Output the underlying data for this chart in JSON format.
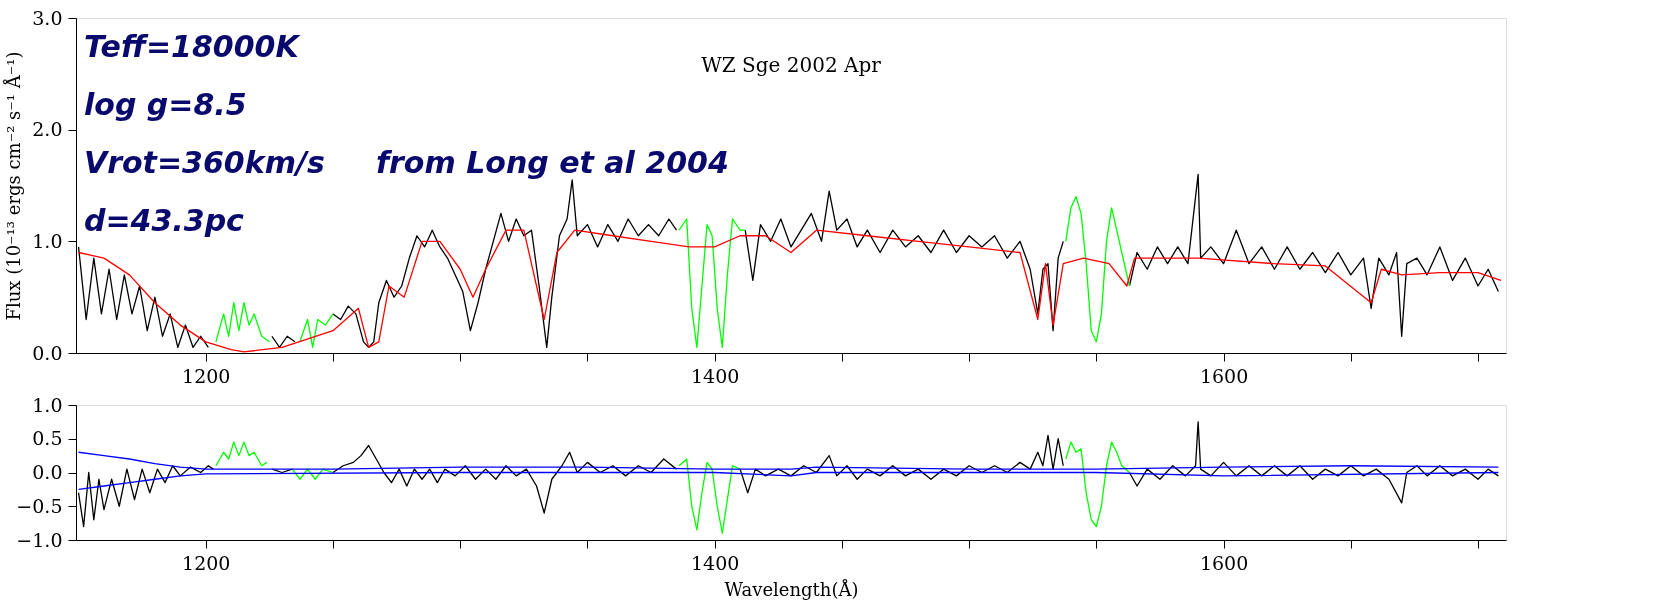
{
  "chart_data": [
    {
      "type": "line",
      "title": "WZ Sge 2002 Apr",
      "ylabel": "Flux (10⁻¹³ ergs cm⁻² s⁻¹ Å⁻¹)",
      "annotations": [
        "Teff=18000K",
        "log g=8.5",
        "Vrot=360km/s",
        "d=43.3pc",
        "from Long et al 2004"
      ],
      "xlim": [
        1149,
        1711
      ],
      "ylim": [
        0,
        3
      ],
      "xticks": [
        1200,
        {
          "value": 1250,
          "label": null
        },
        {
          "value": 1300,
          "label": null
        },
        {
          "value": 1350,
          "label": null
        },
        1400,
        {
          "value": 1450,
          "label": null
        },
        {
          "value": 1500,
          "label": null
        },
        {
          "value": 1550,
          "label": null
        },
        1600,
        {
          "value": 1650,
          "label": null
        },
        {
          "value": 1700,
          "label": null
        }
      ],
      "yticks": [
        {
          "value": 0,
          "label": "0.0"
        },
        {
          "value": 1,
          "label": "1.0"
        },
        {
          "value": 2,
          "label": "2.0"
        },
        {
          "value": 3,
          "label": "3.0"
        }
      ],
      "grid": false,
      "line_style": "solid",
      "marker": "none",
      "series": [
        {
          "color": "#000000",
          "x": [
            1150,
            1153,
            1156,
            1159,
            1162,
            1165,
            1168,
            1171,
            1174,
            1177,
            1180,
            1183,
            1186,
            1189,
            1192,
            1195,
            1198,
            1201,
            1204,
            1226,
            1229,
            1232,
            1235,
            1237,
            1250,
            1253,
            1256,
            1259,
            1262,
            1264,
            1266,
            1268,
            1271,
            1274,
            1277,
            1280,
            1283,
            1286,
            1289,
            1292,
            1295,
            1298,
            1301,
            1304,
            1307,
            1310,
            1313,
            1316,
            1319,
            1322,
            1325,
            1328,
            1331,
            1334,
            1336,
            1339,
            1342,
            1344,
            1346,
            1350,
            1354,
            1358,
            1362,
            1366,
            1370,
            1374,
            1378,
            1382,
            1385,
            1386,
            1412,
            1415,
            1418,
            1422,
            1426,
            1430,
            1434,
            1438,
            1442,
            1445,
            1448,
            1452,
            1456,
            1460,
            1465,
            1470,
            1475,
            1480,
            1485,
            1490,
            1495,
            1500,
            1505,
            1510,
            1515,
            1520,
            1524,
            1527,
            1529,
            1531,
            1533,
            1535,
            1537,
            1538,
            1563,
            1566,
            1570,
            1574,
            1578,
            1582,
            1586,
            1590,
            1591,
            1595,
            1600,
            1605,
            1610,
            1615,
            1620,
            1625,
            1630,
            1635,
            1640,
            1645,
            1650,
            1655,
            1658,
            1661,
            1665,
            1668,
            1670,
            1672,
            1676,
            1680,
            1685,
            1690,
            1695,
            1700,
            1704,
            1708
          ],
          "values": [
            0.95,
            0.3,
            0.85,
            0.35,
            0.75,
            0.3,
            0.7,
            0.35,
            0.6,
            0.2,
            0.5,
            0.15,
            0.35,
            0.05,
            0.25,
            0.05,
            0.15,
            0.05,
            null,
            0.15,
            0.05,
            0.15,
            0.1,
            null,
            0.35,
            0.3,
            0.42,
            0.35,
            0.1,
            0.05,
            0.1,
            0.45,
            0.65,
            0.5,
            0.6,
            0.85,
            1.05,
            0.95,
            1.1,
            0.95,
            0.85,
            0.7,
            0.55,
            0.2,
            0.45,
            0.75,
            1.0,
            1.25,
            1.0,
            1.2,
            1.05,
            1.1,
            0.6,
            0.05,
            0.5,
            1.05,
            1.2,
            1.55,
            1.05,
            1.15,
            0.95,
            1.15,
            1.0,
            1.2,
            1.05,
            1.15,
            1.05,
            1.2,
            1.1,
            null,
            1.1,
            0.65,
            1.15,
            1.0,
            1.2,
            0.95,
            1.1,
            1.25,
            1.0,
            1.45,
            1.1,
            1.2,
            0.95,
            1.1,
            0.9,
            1.1,
            0.95,
            1.05,
            0.9,
            1.1,
            0.9,
            1.05,
            0.95,
            1.05,
            0.85,
            1.0,
            0.75,
            0.35,
            0.75,
            0.8,
            0.2,
            0.85,
            1.0,
            null,
            0.6,
            0.9,
            0.75,
            0.95,
            0.8,
            0.95,
            0.8,
            1.6,
            0.85,
            0.95,
            0.8,
            1.1,
            0.8,
            0.95,
            0.75,
            0.95,
            0.75,
            0.9,
            0.72,
            0.9,
            0.7,
            0.85,
            0.4,
            0.85,
            0.7,
            0.9,
            0.15,
            0.8,
            0.85,
            0.7,
            0.95,
            0.65,
            0.85,
            0.6,
            0.75,
            0.55
          ]
        },
        {
          "color": "#00ff00",
          "x": [
            1204,
            1207,
            1209,
            1211,
            1213,
            1215,
            1217,
            1219,
            1222,
            1225,
            1230,
            1237,
            1240,
            1242,
            1244,
            1247,
            1250,
            1300,
            1386,
            1389,
            1391,
            1393,
            1395,
            1397,
            1399,
            1401,
            1403,
            1405,
            1407,
            1410,
            1412,
            1480,
            1538,
            1540,
            1542,
            1544,
            1546,
            1548,
            1550,
            1552,
            1554,
            1556,
            1558,
            1560,
            1563
          ],
          "values": [
            0.1,
            0.35,
            0.15,
            0.45,
            0.2,
            0.45,
            0.25,
            0.35,
            0.15,
            0.1,
            null,
            0.1,
            0.3,
            0.05,
            0.3,
            0.25,
            0.35,
            null,
            1.1,
            1.2,
            0.4,
            0.05,
            0.6,
            1.15,
            1.05,
            0.4,
            0.05,
            0.7,
            1.2,
            1.1,
            1.1,
            null,
            1.0,
            1.3,
            1.4,
            1.25,
            0.8,
            0.2,
            0.1,
            0.35,
            1.0,
            1.3,
            1.1,
            0.9,
            0.6
          ]
        },
        {
          "color": "#ff0000",
          "x": [
            1150,
            1160,
            1170,
            1180,
            1190,
            1200,
            1210,
            1215,
            1230,
            1250,
            1260,
            1264,
            1268,
            1272,
            1278,
            1285,
            1292,
            1300,
            1305,
            1310,
            1318,
            1325,
            1333,
            1338,
            1345,
            1360,
            1375,
            1390,
            1400,
            1410,
            1420,
            1430,
            1440,
            1460,
            1480,
            1500,
            1520,
            1527,
            1530,
            1533,
            1537,
            1545,
            1555,
            1562,
            1565,
            1590,
            1620,
            1640,
            1658,
            1662,
            1670,
            1685,
            1700,
            1709
          ],
          "values": [
            0.9,
            0.85,
            0.7,
            0.45,
            0.25,
            0.1,
            0.03,
            0.01,
            0.05,
            0.2,
            0.4,
            0.05,
            0.1,
            0.6,
            0.5,
            1.0,
            1.0,
            0.75,
            0.5,
            0.75,
            1.1,
            1.1,
            0.3,
            0.9,
            1.1,
            1.05,
            1.0,
            0.95,
            0.95,
            1.05,
            1.05,
            0.9,
            1.1,
            1.05,
            1.0,
            0.95,
            0.9,
            0.3,
            0.8,
            0.25,
            0.8,
            0.85,
            0.8,
            0.6,
            0.85,
            0.85,
            0.8,
            0.78,
            0.45,
            0.75,
            0.7,
            0.72,
            0.72,
            0.65
          ]
        }
      ]
    },
    {
      "type": "line",
      "xlabel": "Wavelength(Å)",
      "xlim": [
        1149,
        1711
      ],
      "ylim": [
        -1,
        1
      ],
      "xticks": [
        1200,
        {
          "value": 1250,
          "label": null
        },
        {
          "value": 1300,
          "label": null
        },
        {
          "value": 1350,
          "label": null
        },
        1400,
        {
          "value": 1450,
          "label": null
        },
        {
          "value": 1500,
          "label": null
        },
        {
          "value": 1550,
          "label": null
        },
        1600,
        {
          "value": 1650,
          "label": null
        },
        {
          "value": 1700,
          "label": null
        }
      ],
      "yticks": [
        {
          "value": -1,
          "label": "−1.0"
        },
        {
          "value": -0.5,
          "label": "−0.5"
        },
        {
          "value": 0,
          "label": "0.0"
        },
        {
          "value": 0.5,
          "label": "0.5"
        },
        {
          "value": 1,
          "label": "1.0"
        }
      ],
      "grid": false,
      "line_style": "solid",
      "marker": "none",
      "series": [
        {
          "color": "#000000",
          "x": [
            1150,
            1152,
            1154,
            1156,
            1158,
            1160,
            1163,
            1166,
            1169,
            1172,
            1175,
            1178,
            1181,
            1184,
            1187,
            1190,
            1194,
            1198,
            1201,
            1203,
            1204,
            1226,
            1230,
            1234,
            1237,
            1250,
            1254,
            1258,
            1261,
            1264,
            1267,
            1270,
            1273,
            1276,
            1279,
            1282,
            1285,
            1288,
            1291,
            1294,
            1298,
            1302,
            1306,
            1310,
            1314,
            1318,
            1322,
            1326,
            1330,
            1333,
            1336,
            1340,
            1343,
            1346,
            1350,
            1355,
            1360,
            1365,
            1370,
            1375,
            1380,
            1385,
            1386,
            1410,
            1413,
            1416,
            1420,
            1425,
            1430,
            1435,
            1440,
            1445,
            1448,
            1452,
            1456,
            1460,
            1465,
            1470,
            1475,
            1480,
            1485,
            1490,
            1495,
            1500,
            1505,
            1510,
            1515,
            1520,
            1524,
            1527,
            1529,
            1531,
            1533,
            1535,
            1537,
            1538,
            1563,
            1566,
            1570,
            1575,
            1580,
            1585,
            1589,
            1590,
            1591,
            1595,
            1600,
            1605,
            1610,
            1615,
            1620,
            1625,
            1630,
            1635,
            1640,
            1645,
            1650,
            1655,
            1660,
            1665,
            1670,
            1672,
            1676,
            1680,
            1685,
            1690,
            1695,
            1700,
            1704,
            1708
          ],
          "values": [
            -0.3,
            -0.8,
            0.0,
            -0.7,
            -0.1,
            -0.55,
            -0.1,
            -0.5,
            0.05,
            -0.4,
            0.05,
            -0.3,
            0.05,
            -0.15,
            0.1,
            -0.05,
            0.08,
            0.0,
            0.1,
            0.05,
            null,
            0.05,
            0.0,
            0.05,
            null,
            0.0,
            0.1,
            0.15,
            0.25,
            0.4,
            0.2,
            0.0,
            -0.15,
            0.05,
            -0.2,
            0.05,
            -0.1,
            0.05,
            -0.15,
            0.05,
            -0.05,
            0.1,
            -0.1,
            0.05,
            -0.1,
            0.1,
            -0.05,
            0.05,
            -0.2,
            -0.6,
            -0.1,
            0.1,
            0.3,
            0.0,
            0.15,
            0.0,
            0.1,
            -0.05,
            0.1,
            0.0,
            0.2,
            0.05,
            null,
            0.05,
            -0.3,
            0.05,
            -0.05,
            0.05,
            -0.05,
            0.1,
            0.0,
            0.25,
            -0.05,
            0.1,
            -0.1,
            0.05,
            -0.05,
            0.1,
            -0.05,
            0.05,
            -0.1,
            0.05,
            -0.05,
            0.1,
            0.0,
            0.1,
            0.0,
            0.15,
            0.05,
            0.3,
            0.1,
            0.55,
            0.05,
            0.5,
            0.1,
            null,
            0.0,
            -0.2,
            0.05,
            -0.1,
            0.1,
            -0.05,
            0.1,
            0.75,
            0.05,
            -0.05,
            0.15,
            -0.05,
            0.1,
            -0.05,
            0.1,
            -0.05,
            0.1,
            -0.1,
            0.05,
            -0.05,
            0.1,
            -0.05,
            0.05,
            -0.1,
            -0.45,
            0.0,
            0.1,
            -0.05,
            0.1,
            -0.05,
            0.05,
            -0.1,
            0.05,
            -0.05
          ]
        },
        {
          "color": "#00ff00",
          "x": [
            1204,
            1207,
            1209,
            1211,
            1213,
            1215,
            1217,
            1219,
            1222,
            1224,
            1230,
            1234,
            1237,
            1240,
            1243,
            1246,
            1250,
            1300,
            1386,
            1389,
            1391,
            1393,
            1395,
            1397,
            1399,
            1401,
            1403,
            1405,
            1407,
            1410,
            1480,
            1538,
            1540,
            1542,
            1544,
            1546,
            1548,
            1550,
            1552,
            1554,
            1556,
            1558,
            1560,
            1563
          ],
          "values": [
            0.1,
            0.3,
            0.2,
            0.45,
            0.25,
            0.45,
            0.25,
            0.3,
            0.1,
            0.15,
            null,
            0.05,
            -0.1,
            0.05,
            -0.1,
            0.05,
            0.0,
            null,
            0.1,
            0.2,
            -0.5,
            -0.85,
            -0.3,
            0.15,
            0.05,
            -0.5,
            -0.9,
            -0.4,
            0.1,
            0.05,
            null,
            0.2,
            0.45,
            0.3,
            0.35,
            -0.3,
            -0.7,
            -0.8,
            -0.5,
            0.1,
            0.45,
            0.3,
            0.1,
            0.0
          ]
        },
        {
          "color": "#0000ff",
          "x": [
            1150,
            1160,
            1170,
            1180,
            1190,
            1200,
            1250,
            1300,
            1350,
            1400,
            1430,
            1440,
            1500,
            1550,
            1600,
            1650,
            1708
          ],
          "values": [
            0.3,
            0.25,
            0.2,
            0.13,
            0.08,
            0.05,
            0.05,
            0.08,
            0.08,
            0.05,
            0.05,
            0.08,
            0.05,
            0.05,
            0.08,
            0.1,
            0.08
          ]
        },
        {
          "color": "#0000ff",
          "x": [
            1150,
            1160,
            1170,
            1180,
            1190,
            1200,
            1300,
            1400,
            1430,
            1440,
            1550,
            1600,
            1708
          ],
          "values": [
            -0.25,
            -0.2,
            -0.15,
            -0.1,
            -0.05,
            -0.02,
            0.0,
            0.0,
            -0.05,
            0.0,
            0.0,
            -0.05,
            0.0
          ]
        }
      ]
    }
  ]
}
